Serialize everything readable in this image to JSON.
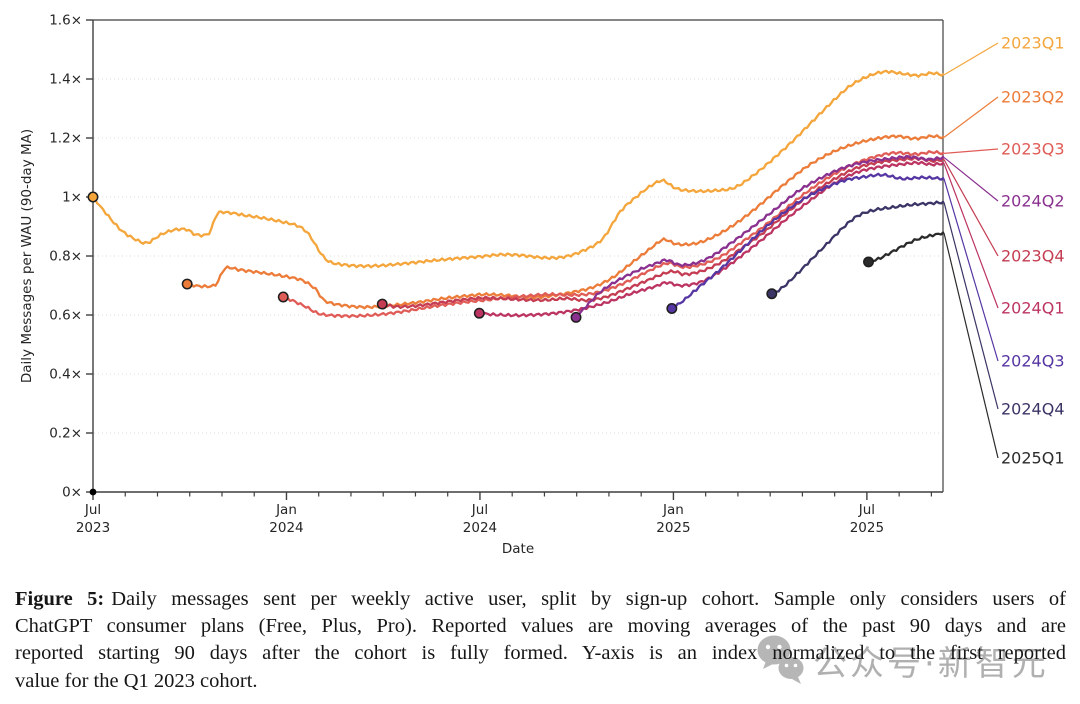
{
  "caption": {
    "label": "Figure 5:",
    "lines": [
      "Daily messages sent per weekly active user, split by sign-up cohort. Sample only considers users of",
      "ChatGPT consumer plans (Free, Plus, Pro). Reported values are moving averages of the past 90 days and are",
      "reported starting 90 days after the cohort is fully formed. Y-axis is an index normalized to the first reported",
      "value for the Q1 2023 cohort."
    ]
  },
  "watermark": {
    "text": "公众号·新智元",
    "icon": "wechat-bubbles-icon",
    "color": "#9a9a9a"
  },
  "chart_data": {
    "type": "line",
    "title": "",
    "xlabel": "Date",
    "ylabel": "Daily Messages per WAU (90-day MA)",
    "x_unit": "months since Jul 2023",
    "xlim": [
      0,
      26.36
    ],
    "ylim": [
      0,
      1.6
    ],
    "grid": "horizontal dotted",
    "legend_position": "right edge labels with leader lines",
    "y_axis": {
      "ticks": [
        {
          "value": 0,
          "label": "0×"
        },
        {
          "value": 0.2,
          "label": "0.2×"
        },
        {
          "value": 0.4,
          "label": "0.4×"
        },
        {
          "value": 0.6,
          "label": "0.6×"
        },
        {
          "value": 0.8,
          "label": "0.8×"
        },
        {
          "value": 1,
          "label": "1×"
        },
        {
          "value": 1.2,
          "label": "1.2×"
        },
        {
          "value": 1.4,
          "label": "1.4×"
        },
        {
          "value": 1.6,
          "label": "1.6×"
        }
      ]
    },
    "x_axis": {
      "major_ticks": [
        {
          "month": 0,
          "line1": "Jul",
          "line2": "2023"
        },
        {
          "month": 6,
          "line1": "Jan",
          "line2": "2024"
        },
        {
          "month": 12,
          "line1": "Jul",
          "line2": "2024"
        },
        {
          "month": 18,
          "line1": "Jan",
          "line2": "2025"
        },
        {
          "month": 24,
          "line1": "Jul",
          "line2": "2025"
        }
      ],
      "minor_tick_months": [
        1,
        2,
        3,
        4,
        5,
        7,
        8,
        9,
        10,
        11,
        13,
        14,
        15,
        16,
        17,
        19,
        20,
        21,
        22,
        23,
        25,
        26
      ]
    },
    "legend_order": [
      "2023Q1",
      "2023Q2",
      "2023Q3",
      "2024Q2",
      "2023Q4",
      "2024Q1",
      "2024Q3",
      "2024Q4",
      "2025Q1"
    ],
    "origin_marker": {
      "month": 0,
      "value": 0
    },
    "series": [
      {
        "name": "2023Q1",
        "color": "#F4A63C",
        "start_marker": [
          0,
          1.0
        ],
        "points": [
          [
            0,
            1.0
          ],
          [
            0.4,
            0.945
          ],
          [
            0.9,
            0.885
          ],
          [
            1.4,
            0.852
          ],
          [
            1.7,
            0.845
          ],
          [
            2.1,
            0.872
          ],
          [
            2.5,
            0.888
          ],
          [
            2.9,
            0.89
          ],
          [
            3.2,
            0.872
          ],
          [
            3.6,
            0.878
          ],
          [
            3.85,
            0.942
          ],
          [
            4.2,
            0.947
          ],
          [
            4.7,
            0.938
          ],
          [
            5.3,
            0.928
          ],
          [
            5.9,
            0.915
          ],
          [
            6.4,
            0.9
          ],
          [
            6.7,
            0.872
          ],
          [
            7.0,
            0.82
          ],
          [
            7.3,
            0.782
          ],
          [
            7.8,
            0.77
          ],
          [
            8.4,
            0.766
          ],
          [
            9.0,
            0.768
          ],
          [
            9.7,
            0.775
          ],
          [
            10.5,
            0.784
          ],
          [
            11.3,
            0.792
          ],
          [
            12.0,
            0.798
          ],
          [
            12.7,
            0.805
          ],
          [
            13.3,
            0.802
          ],
          [
            14.0,
            0.794
          ],
          [
            14.6,
            0.797
          ],
          [
            15.2,
            0.818
          ],
          [
            15.8,
            0.858
          ],
          [
            16.35,
            0.95
          ],
          [
            16.9,
            1.005
          ],
          [
            17.4,
            1.045
          ],
          [
            17.7,
            1.055
          ],
          [
            18.1,
            1.028
          ],
          [
            18.7,
            1.02
          ],
          [
            19.3,
            1.022
          ],
          [
            19.9,
            1.032
          ],
          [
            20.5,
            1.075
          ],
          [
            21.1,
            1.13
          ],
          [
            21.7,
            1.19
          ],
          [
            22.3,
            1.255
          ],
          [
            22.9,
            1.32
          ],
          [
            23.5,
            1.378
          ],
          [
            24.1,
            1.412
          ],
          [
            24.6,
            1.425
          ],
          [
            25.1,
            1.418
          ],
          [
            25.6,
            1.412
          ],
          [
            26.0,
            1.42
          ],
          [
            26.36,
            1.414
          ]
        ]
      },
      {
        "name": "2023Q2",
        "color": "#EC7C39",
        "start_marker": [
          2.92,
          0.705
        ],
        "points": [
          [
            2.92,
            0.705
          ],
          [
            3.3,
            0.698
          ],
          [
            3.8,
            0.703
          ],
          [
            4.1,
            0.758
          ],
          [
            4.6,
            0.752
          ],
          [
            5.3,
            0.742
          ],
          [
            6.0,
            0.73
          ],
          [
            6.5,
            0.717
          ],
          [
            6.9,
            0.688
          ],
          [
            7.2,
            0.648
          ],
          [
            7.8,
            0.632
          ],
          [
            8.5,
            0.627
          ],
          [
            9.2,
            0.632
          ],
          [
            10.0,
            0.642
          ],
          [
            10.8,
            0.655
          ],
          [
            11.6,
            0.665
          ],
          [
            12.2,
            0.67
          ],
          [
            12.9,
            0.666
          ],
          [
            13.6,
            0.66
          ],
          [
            14.2,
            0.665
          ],
          [
            14.9,
            0.678
          ],
          [
            15.5,
            0.694
          ],
          [
            16.1,
            0.726
          ],
          [
            16.7,
            0.776
          ],
          [
            17.3,
            0.826
          ],
          [
            17.7,
            0.856
          ],
          [
            18.1,
            0.84
          ],
          [
            18.7,
            0.843
          ],
          [
            19.3,
            0.868
          ],
          [
            20.0,
            0.915
          ],
          [
            20.7,
            0.975
          ],
          [
            21.4,
            1.04
          ],
          [
            22.1,
            1.1
          ],
          [
            22.8,
            1.145
          ],
          [
            23.5,
            1.176
          ],
          [
            24.2,
            1.196
          ],
          [
            24.9,
            1.206
          ],
          [
            25.5,
            1.198
          ],
          [
            26.0,
            1.206
          ],
          [
            26.36,
            1.202
          ]
        ]
      },
      {
        "name": "2023Q3",
        "color": "#E05C57",
        "start_marker": [
          5.9,
          0.661
        ],
        "points": [
          [
            5.9,
            0.661
          ],
          [
            6.2,
            0.648
          ],
          [
            6.6,
            0.628
          ],
          [
            7.0,
            0.605
          ],
          [
            7.5,
            0.598
          ],
          [
            8.2,
            0.597
          ],
          [
            9.0,
            0.603
          ],
          [
            9.8,
            0.615
          ],
          [
            10.6,
            0.63
          ],
          [
            11.4,
            0.642
          ],
          [
            12.1,
            0.65
          ],
          [
            12.8,
            0.658
          ],
          [
            13.5,
            0.665
          ],
          [
            14.1,
            0.67
          ],
          [
            14.7,
            0.668
          ],
          [
            15.3,
            0.67
          ],
          [
            15.9,
            0.684
          ],
          [
            16.5,
            0.71
          ],
          [
            17.1,
            0.742
          ],
          [
            17.6,
            0.768
          ],
          [
            17.9,
            0.776
          ],
          [
            18.3,
            0.762
          ],
          [
            18.9,
            0.772
          ],
          [
            19.5,
            0.8
          ],
          [
            20.1,
            0.845
          ],
          [
            20.8,
            0.9
          ],
          [
            21.5,
            0.962
          ],
          [
            22.2,
            1.022
          ],
          [
            22.9,
            1.072
          ],
          [
            23.6,
            1.112
          ],
          [
            24.3,
            1.138
          ],
          [
            24.9,
            1.15
          ],
          [
            25.5,
            1.145
          ],
          [
            26.0,
            1.152
          ],
          [
            26.36,
            1.148
          ]
        ]
      },
      {
        "name": "2023Q4",
        "color": "#C43D52",
        "start_marker": [
          8.97,
          0.637
        ],
        "points": [
          [
            8.97,
            0.637
          ],
          [
            9.4,
            0.628
          ],
          [
            10.0,
            0.631
          ],
          [
            10.7,
            0.641
          ],
          [
            11.4,
            0.651
          ],
          [
            12.1,
            0.658
          ],
          [
            12.8,
            0.655
          ],
          [
            13.5,
            0.651
          ],
          [
            14.1,
            0.651
          ],
          [
            14.7,
            0.656
          ],
          [
            15.3,
            0.65
          ],
          [
            15.9,
            0.661
          ],
          [
            16.5,
            0.686
          ],
          [
            17.1,
            0.713
          ],
          [
            17.6,
            0.736
          ],
          [
            18.0,
            0.748
          ],
          [
            18.35,
            0.738
          ],
          [
            18.9,
            0.75
          ],
          [
            19.5,
            0.78
          ],
          [
            20.1,
            0.825
          ],
          [
            20.8,
            0.88
          ],
          [
            21.5,
            0.945
          ],
          [
            22.2,
            1.005
          ],
          [
            22.9,
            1.055
          ],
          [
            23.6,
            1.095
          ],
          [
            24.3,
            1.116
          ],
          [
            25.0,
            1.126
          ],
          [
            25.6,
            1.13
          ],
          [
            26.0,
            1.122
          ],
          [
            26.36,
            1.127
          ]
        ]
      },
      {
        "name": "2024Q1",
        "color": "#BC3562",
        "start_marker": [
          11.98,
          0.606
        ],
        "points": [
          [
            11.98,
            0.606
          ],
          [
            12.5,
            0.601
          ],
          [
            13.2,
            0.599
          ],
          [
            13.9,
            0.602
          ],
          [
            14.6,
            0.61
          ],
          [
            15.3,
            0.624
          ],
          [
            16.0,
            0.645
          ],
          [
            16.7,
            0.673
          ],
          [
            17.4,
            0.696
          ],
          [
            17.8,
            0.71
          ],
          [
            18.2,
            0.7
          ],
          [
            18.8,
            0.71
          ],
          [
            19.4,
            0.744
          ],
          [
            20.1,
            0.8
          ],
          [
            20.8,
            0.86
          ],
          [
            21.5,
            0.925
          ],
          [
            22.2,
            0.985
          ],
          [
            22.9,
            1.04
          ],
          [
            23.6,
            1.08
          ],
          [
            24.3,
            1.1
          ],
          [
            25.0,
            1.11
          ],
          [
            25.6,
            1.116
          ],
          [
            26.0,
            1.11
          ],
          [
            26.36,
            1.114
          ]
        ]
      },
      {
        "name": "2024Q2",
        "color": "#8A3190",
        "start_marker": [
          14.98,
          0.592
        ],
        "points": [
          [
            14.98,
            0.592
          ],
          [
            15.3,
            0.63
          ],
          [
            15.7,
            0.675
          ],
          [
            16.1,
            0.706
          ],
          [
            16.5,
            0.73
          ],
          [
            17.0,
            0.756
          ],
          [
            17.5,
            0.776
          ],
          [
            17.8,
            0.786
          ],
          [
            18.2,
            0.77
          ],
          [
            18.7,
            0.776
          ],
          [
            19.2,
            0.8
          ],
          [
            19.8,
            0.845
          ],
          [
            20.5,
            0.902
          ],
          [
            21.2,
            0.962
          ],
          [
            21.9,
            1.022
          ],
          [
            22.6,
            1.066
          ],
          [
            23.3,
            1.1
          ],
          [
            24.0,
            1.12
          ],
          [
            24.7,
            1.13
          ],
          [
            25.3,
            1.136
          ],
          [
            25.9,
            1.128
          ],
          [
            26.36,
            1.134
          ]
        ]
      },
      {
        "name": "2024Q3",
        "color": "#5636A3",
        "start_marker": [
          17.95,
          0.622
        ],
        "points": [
          [
            17.95,
            0.622
          ],
          [
            18.3,
            0.648
          ],
          [
            18.8,
            0.695
          ],
          [
            19.4,
            0.75
          ],
          [
            20.0,
            0.81
          ],
          [
            20.6,
            0.872
          ],
          [
            21.2,
            0.928
          ],
          [
            21.9,
            0.984
          ],
          [
            22.6,
            1.026
          ],
          [
            23.3,
            1.056
          ],
          [
            23.9,
            1.068
          ],
          [
            24.5,
            1.075
          ],
          [
            25.1,
            1.062
          ],
          [
            25.7,
            1.066
          ],
          [
            26.36,
            1.062
          ]
        ]
      },
      {
        "name": "2024Q4",
        "color": "#3A3566",
        "start_marker": [
          21.05,
          0.672
        ],
        "points": [
          [
            21.05,
            0.672
          ],
          [
            21.35,
            0.69
          ],
          [
            21.75,
            0.73
          ],
          [
            22.25,
            0.785
          ],
          [
            22.75,
            0.84
          ],
          [
            23.25,
            0.895
          ],
          [
            23.7,
            0.935
          ],
          [
            24.2,
            0.955
          ],
          [
            24.8,
            0.965
          ],
          [
            25.4,
            0.974
          ],
          [
            25.9,
            0.978
          ],
          [
            26.36,
            0.982
          ]
        ]
      },
      {
        "name": "2025Q1",
        "color": "#2B2B2B",
        "start_marker": [
          24.05,
          0.78
        ],
        "points": [
          [
            24.05,
            0.78
          ],
          [
            24.35,
            0.79
          ],
          [
            24.75,
            0.812
          ],
          [
            25.15,
            0.836
          ],
          [
            25.55,
            0.856
          ],
          [
            25.95,
            0.868
          ],
          [
            26.36,
            0.878
          ]
        ]
      }
    ]
  }
}
